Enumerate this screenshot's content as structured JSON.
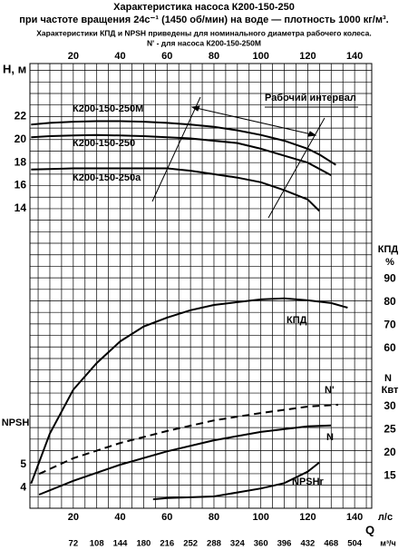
{
  "title": "Характеристика насоса К200-150-250",
  "subtitle": "при частоте вращения 24с⁻¹ (1450 об/мин) на воде — плотность 1000 кг/м³.",
  "notes": [
    "Характеристики КПД и NPSH приведены для номинального диаметра рабочего колеса.",
    "N' - для насоса К200-150-250М"
  ],
  "annotation": "Рабочий интервал",
  "chart_data": [
    {
      "type": "line",
      "ylabel": "H, м",
      "axis_side": "left",
      "xlabel": "Q",
      "xunit": "л/с",
      "xunit2": "м³/ч",
      "xlim": [
        1.5,
        147.3
      ],
      "xticks": [
        20,
        40,
        60,
        80,
        100,
        120,
        140
      ],
      "xticks2": [
        {
          "value": 20,
          "label": "72"
        },
        {
          "value": 30,
          "label": "108"
        },
        {
          "value": 40,
          "label": "144"
        },
        {
          "value": 50,
          "label": "180"
        },
        {
          "value": 60,
          "label": "216"
        },
        {
          "value": 70,
          "label": "252"
        },
        {
          "value": 80,
          "label": "288"
        },
        {
          "value": 90,
          "label": "324"
        },
        {
          "value": 100,
          "label": "360"
        },
        {
          "value": 110,
          "label": "396"
        },
        {
          "value": 120,
          "label": "432"
        },
        {
          "value": 130,
          "label": "468"
        },
        {
          "value": 140,
          "label": "504"
        }
      ],
      "xgrid": [
        5,
        10,
        15,
        20,
        25,
        30,
        35,
        40,
        45,
        50,
        55,
        60,
        65,
        70,
        75,
        80,
        85,
        90,
        95,
        100,
        105,
        110,
        115,
        120,
        125,
        130,
        135,
        140,
        145
      ],
      "ygrid": [
        -12,
        -11,
        -10,
        -9,
        -8,
        -7,
        -6,
        -5,
        -4,
        -3,
        -2,
        -1,
        0,
        1,
        2,
        3,
        4,
        5,
        6,
        7,
        8,
        9,
        10,
        11,
        12,
        13,
        14,
        15,
        16,
        17,
        18,
        19,
        20,
        21,
        22,
        23,
        24,
        25,
        26
      ],
      "ylim": [
        -12,
        26.6
      ],
      "yticks": [
        14,
        16,
        18,
        20,
        22
      ],
      "series": [
        {
          "name": "К200-150-250М",
          "color": "#000000",
          "x": [
            2,
            10,
            20,
            30,
            40,
            50,
            60,
            70,
            80,
            90,
            100,
            110,
            120,
            125,
            132
          ],
          "values": [
            21.3,
            21.45,
            21.55,
            21.6,
            21.6,
            21.55,
            21.45,
            21.3,
            21.1,
            20.8,
            20.4,
            19.9,
            19.2,
            18.7,
            17.8
          ]
        },
        {
          "name": "К200-150-250",
          "color": "#000000",
          "x": [
            2,
            10,
            20,
            30,
            40,
            50,
            60,
            70,
            80,
            90,
            100,
            110,
            120,
            130
          ],
          "values": [
            20.2,
            20.3,
            20.35,
            20.4,
            20.35,
            20.3,
            20.2,
            20.1,
            19.9,
            19.7,
            19.2,
            18.6,
            18.0,
            16.9
          ]
        },
        {
          "name": "К200-150-250а",
          "color": "#000000",
          "x": [
            2,
            10,
            20,
            30,
            40,
            50,
            60,
            70,
            80,
            90,
            100,
            110,
            120,
            125
          ],
          "values": [
            17.4,
            17.45,
            17.5,
            17.5,
            17.5,
            17.5,
            17.5,
            17.3,
            17.0,
            16.7,
            16.3,
            15.6,
            14.8,
            13.8
          ]
        }
      ]
    },
    {
      "type": "line",
      "ylabel": "КПД",
      "yunit": "%",
      "axis_side": "right",
      "ylim": [
        -9.4,
        183.5
      ],
      "yticks": [
        60,
        70,
        80,
        90
      ],
      "series": [
        {
          "name": "КПД",
          "color": "#000000",
          "x": [
            2,
            10,
            20,
            30,
            40,
            50,
            60,
            70,
            80,
            90,
            100,
            110,
            120,
            130,
            137
          ],
          "values": [
            1.3,
            23,
            42,
            53.6,
            63,
            69.4,
            73.3,
            76.5,
            78.8,
            80,
            81.2,
            81.6,
            80.8,
            79.6,
            77.6
          ]
        }
      ]
    },
    {
      "type": "line",
      "ylabel": "N",
      "yunit": "Квт",
      "axis_side": "right",
      "ylim": [
        7.95,
        104.4
      ],
      "yticks": [
        15,
        20,
        25,
        30
      ],
      "series": [
        {
          "name": "N'",
          "color": "#000000",
          "dashed": true,
          "x": [
            5.4,
            20,
            40,
            60,
            80,
            100,
            120,
            133
          ],
          "values": [
            15.4,
            18.8,
            22.1,
            24.7,
            27,
            28.6,
            30,
            30.4
          ]
        },
        {
          "name": "N",
          "color": "#000000",
          "x": [
            5.4,
            20,
            40,
            60,
            80,
            100,
            120,
            130
          ],
          "values": [
            10.9,
            13.9,
            17.4,
            20.3,
            22.7,
            24.5,
            25.7,
            25.9
          ]
        }
      ]
    },
    {
      "type": "line",
      "ylabel": "NPSH",
      "axis_side": "left",
      "ylim": [
        3.11,
        22.4
      ],
      "yticks": [
        4,
        5
      ],
      "series": [
        {
          "name": "NPSHr",
          "color": "#000000",
          "x": [
            54,
            60,
            80,
            100,
            110,
            120,
            125
          ],
          "values": [
            3.5,
            3.55,
            3.62,
            3.97,
            4.2,
            4.7,
            5.1
          ]
        }
      ]
    }
  ]
}
